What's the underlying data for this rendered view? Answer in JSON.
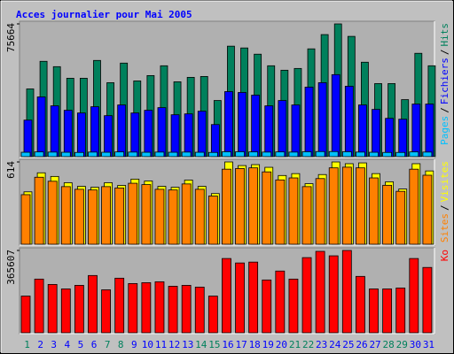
{
  "chart_data": [
    {
      "type": "bar",
      "title": "Acces journalier pour Mai 2005",
      "categories": [
        "1",
        "2",
        "3",
        "4",
        "5",
        "6",
        "7",
        "8",
        "9",
        "10",
        "11",
        "12",
        "13",
        "14",
        "15",
        "16",
        "17",
        "18",
        "19",
        "20",
        "21",
        "22",
        "23",
        "24",
        "25",
        "26",
        "27",
        "28",
        "29",
        "30",
        "31"
      ],
      "category_colors": [
        "#00805c",
        "#0000ff",
        "#0000ff",
        "#0000ff",
        "#0000ff",
        "#0000ff",
        "#00805c",
        "#00805c",
        "#0000ff",
        "#0000ff",
        "#0000ff",
        "#0000ff",
        "#0000ff",
        "#00805c",
        "#00805c",
        "#0000ff",
        "#0000ff",
        "#0000ff",
        "#0000ff",
        "#0000ff",
        "#00805c",
        "#00805c",
        "#0000ff",
        "#0000ff",
        "#0000ff",
        "#0000ff",
        "#0000ff",
        "#00805c",
        "#00805c",
        "#0000ff",
        "#0000ff"
      ],
      "legend_separator": "/",
      "ylim": [
        0,
        75664
      ],
      "yticks": [
        75664
      ],
      "series": [
        {
          "name": "Pages",
          "color": "#00c0ff",
          "values": [
            2500,
            2700,
            2600,
            2500,
            2400,
            2600,
            2500,
            2700,
            2600,
            2500,
            2600,
            2500,
            2600,
            2500,
            2400,
            2800,
            2800,
            2700,
            2600,
            2700,
            2600,
            2800,
            2900,
            2900,
            2800,
            2600,
            2500,
            2400,
            2400,
            2700,
            2600
          ]
        },
        {
          "name": "Fichiers",
          "color": "#0000ff",
          "values": [
            20830,
            34040,
            28960,
            26420,
            24890,
            28450,
            23370,
            29460,
            24890,
            26420,
            27940,
            23880,
            24380,
            25910,
            18290,
            37080,
            36580,
            35050,
            28960,
            32000,
            29460,
            39620,
            42160,
            46740,
            40130,
            29460,
            26920,
            21840,
            21340,
            29970,
            29970
          ]
        },
        {
          "name": "Hits",
          "color": "#00805c",
          "values": [
            38600,
            54340,
            51290,
            44690,
            44690,
            54840,
            42150,
            53320,
            43160,
            46210,
            51800,
            42660,
            45200,
            45700,
            31990,
            62970,
            61950,
            58400,
            51800,
            49260,
            50270,
            61440,
            69570,
            75664,
            68550,
            53830,
            41640,
            41640,
            32500,
            58900,
            51800
          ]
        }
      ]
    },
    {
      "type": "bar",
      "ylim": [
        0,
        614
      ],
      "yticks": [
        614
      ],
      "legend_separator": "/",
      "series": [
        {
          "name": "Sites",
          "color": "#ff8000",
          "values": [
            370,
            500,
            470,
            430,
            410,
            405,
            430,
            420,
            455,
            445,
            410,
            405,
            450,
            410,
            360,
            560,
            565,
            570,
            540,
            480,
            495,
            430,
            490,
            570,
            575,
            570,
            495,
            440,
            395,
            560,
            515
          ]
        },
        {
          "name": "Visites",
          "color": "#ffff00",
          "values": [
            391,
            533,
            506,
            459,
            432,
            425,
            459,
            439,
            486,
            472,
            432,
            425,
            479,
            432,
            378,
            614,
            587,
            594,
            574,
            513,
            527,
            452,
            520,
            614,
            601,
            607,
            527,
            466,
            412,
            601,
            547
          ]
        }
      ]
    },
    {
      "type": "bar",
      "ylim": [
        0,
        365607
      ],
      "yticks": [
        365607
      ],
      "series": [
        {
          "name": "Ko",
          "color": "#ff0000",
          "values": [
            162900,
            238400,
            214600,
            194700,
            210600,
            254300,
            190800,
            242400,
            218600,
            222500,
            226500,
            206600,
            210600,
            202700,
            162900,
            329800,
            310000,
            313900,
            234500,
            274200,
            238400,
            333800,
            361600,
            341800,
            365607,
            250400,
            194700,
            194700,
            198700,
            329800,
            290100
          ]
        }
      ]
    }
  ]
}
